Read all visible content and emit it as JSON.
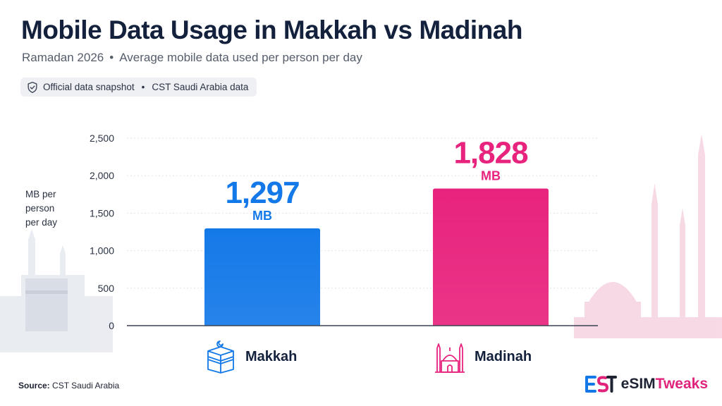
{
  "header": {
    "title": "Mobile Data Usage in Makkah vs Madinah",
    "period": "Ramadan 2026",
    "description": "Average mobile data used per person per day",
    "badge_text_1": "Official data snapshot",
    "badge_text_2": "CST Saudi Arabia data",
    "badge_icon": "shield-check-icon"
  },
  "chart_data": {
    "type": "bar",
    "title": "Mobile Data Usage in Makkah vs Madinah",
    "ylabel": "MB per person per day",
    "xlabel": "",
    "categories": [
      "Makkah",
      "Madinah"
    ],
    "values": [
      1297,
      1828
    ],
    "value_labels": [
      "1,297",
      "1,828"
    ],
    "unit": "MB",
    "colors": [
      "#1479e8",
      "#e8237e"
    ],
    "yticks": [
      0,
      500,
      1000,
      1500,
      2000,
      2500
    ],
    "ytick_labels": [
      "0",
      "500",
      "1,000",
      "1,500",
      "2,000",
      "2,500"
    ],
    "ylim": [
      0,
      2500
    ],
    "grid": true,
    "legend": "none"
  },
  "categories_icons": {
    "makkah": "kaaba-icon",
    "madinah": "mosque-icon"
  },
  "footer": {
    "source_label": "Source:",
    "source_text": "CST Saudi Arabia",
    "brand_prefix": "eSIM",
    "brand_suffix": "Tweaks",
    "brand_logo": "est-logo-icon"
  }
}
